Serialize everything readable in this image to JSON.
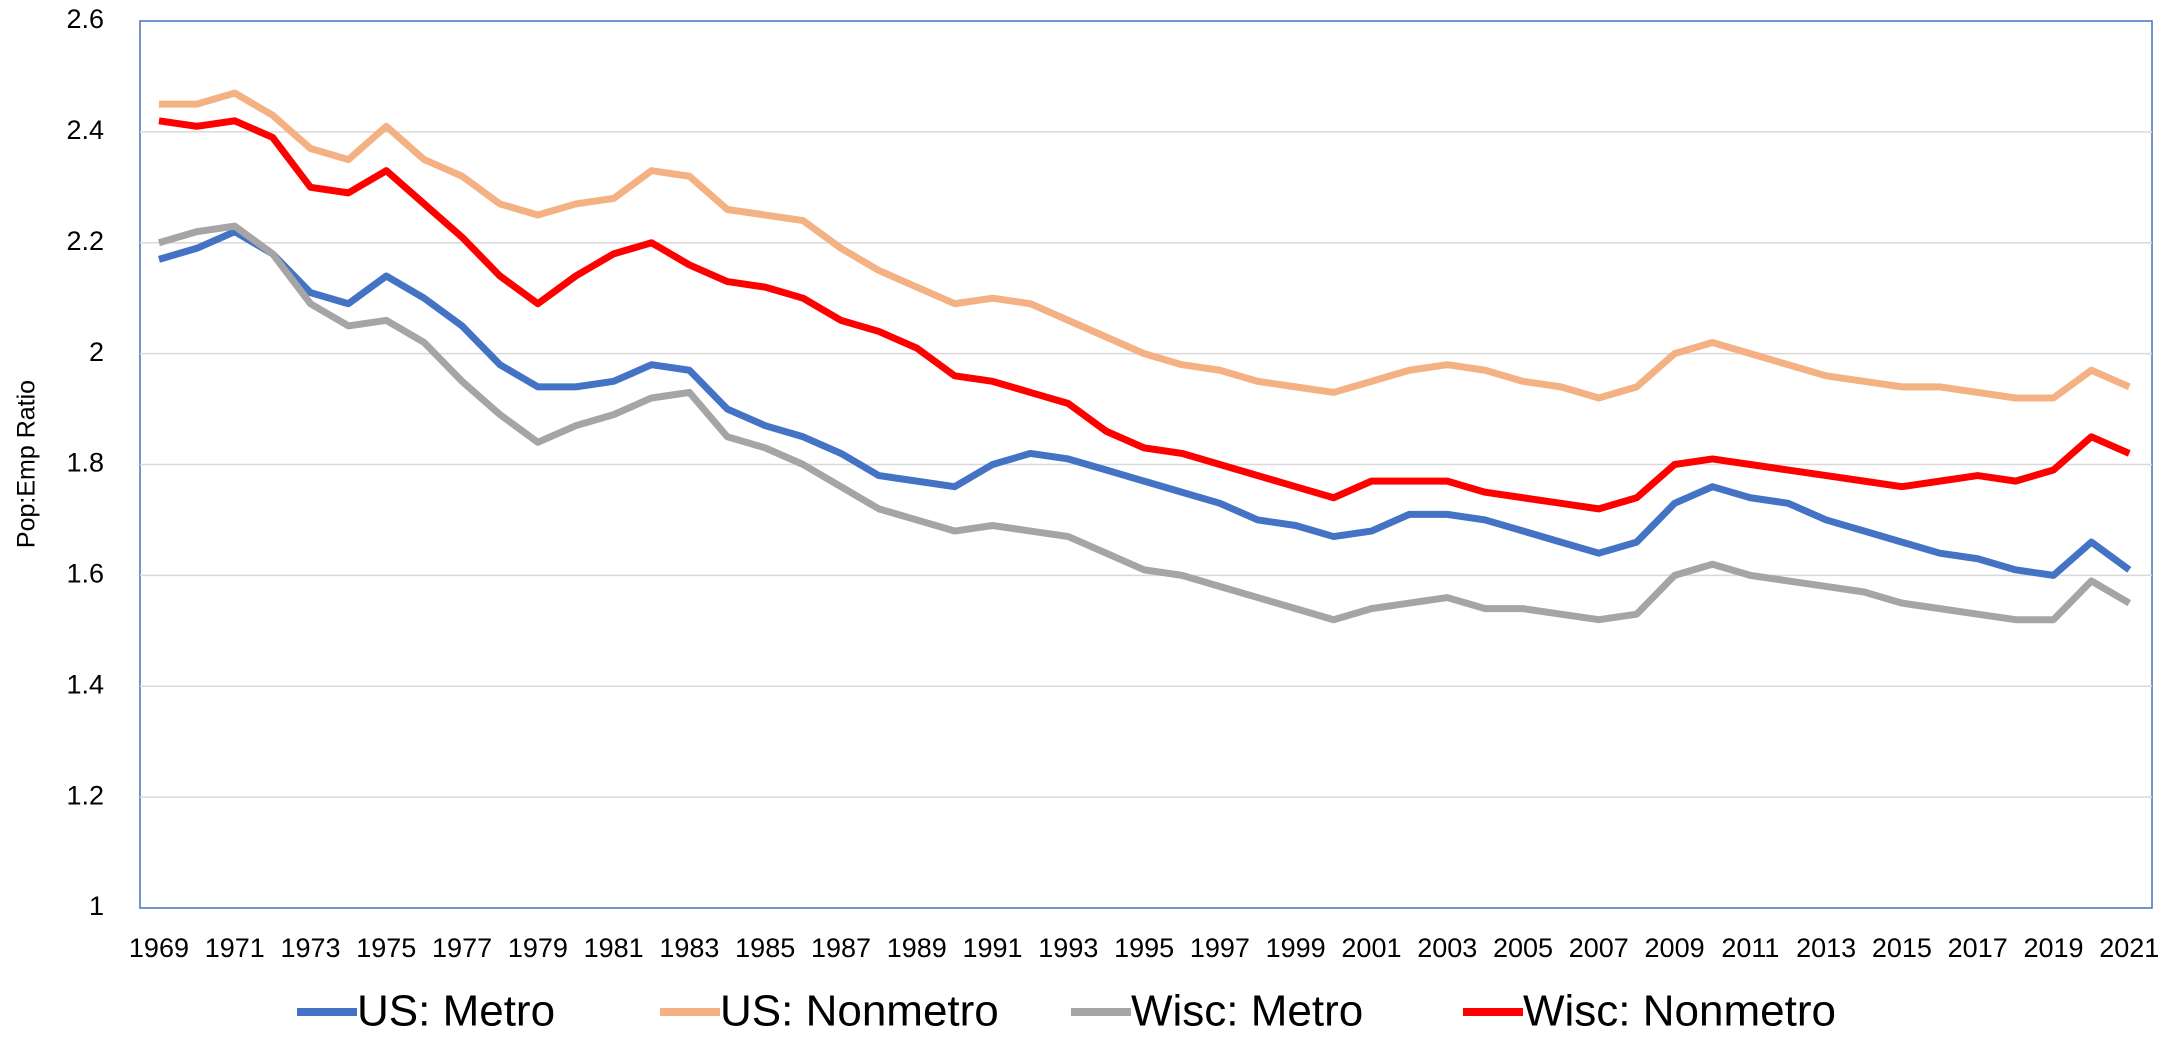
{
  "chart_data": {
    "type": "line",
    "y_label": "Pop:Emp Ratio",
    "x": [
      1969,
      1970,
      1971,
      1972,
      1973,
      1974,
      1975,
      1976,
      1977,
      1978,
      1979,
      1980,
      1981,
      1982,
      1983,
      1984,
      1985,
      1986,
      1987,
      1988,
      1989,
      1990,
      1991,
      1992,
      1993,
      1994,
      1995,
      1996,
      1997,
      1998,
      1999,
      2000,
      2001,
      2002,
      2003,
      2004,
      2005,
      2006,
      2007,
      2008,
      2009,
      2010,
      2011,
      2012,
      2013,
      2014,
      2015,
      2016,
      2017,
      2018,
      2019,
      2020,
      2021
    ],
    "xlim": [
      1968.5,
      2021.6
    ],
    "xticks": [
      1969,
      1971,
      1973,
      1975,
      1977,
      1979,
      1981,
      1983,
      1985,
      1987,
      1989,
      1991,
      1993,
      1995,
      1997,
      1999,
      2001,
      2003,
      2005,
      2007,
      2009,
      2011,
      2013,
      2015,
      2017,
      2019,
      2021
    ],
    "ylim": [
      1,
      2.6
    ],
    "yticks": [
      1,
      1.2,
      1.4,
      1.6,
      1.8,
      2,
      2.2,
      2.4,
      2.6
    ],
    "grid": true,
    "legend": "bottom",
    "series": [
      {
        "name": "US: Metro",
        "color": "#4472c4",
        "values": [
          2.17,
          2.19,
          2.22,
          2.18,
          2.11,
          2.09,
          2.14,
          2.1,
          2.05,
          1.98,
          1.94,
          1.94,
          1.95,
          1.98,
          1.97,
          1.9,
          1.87,
          1.85,
          1.82,
          1.78,
          1.77,
          1.76,
          1.8,
          1.82,
          1.81,
          1.79,
          1.77,
          1.75,
          1.73,
          1.7,
          1.69,
          1.67,
          1.68,
          1.71,
          1.71,
          1.7,
          1.68,
          1.66,
          1.64,
          1.66,
          1.73,
          1.76,
          1.74,
          1.73,
          1.7,
          1.68,
          1.66,
          1.64,
          1.63,
          1.61,
          1.6,
          1.66,
          1.61
        ]
      },
      {
        "name": "US: Nonmetro",
        "color": "#f4b183",
        "values": [
          2.45,
          2.45,
          2.47,
          2.43,
          2.37,
          2.35,
          2.41,
          2.35,
          2.32,
          2.27,
          2.25,
          2.27,
          2.28,
          2.33,
          2.32,
          2.26,
          2.25,
          2.24,
          2.19,
          2.15,
          2.12,
          2.09,
          2.1,
          2.09,
          2.06,
          2.03,
          2.0,
          1.98,
          1.97,
          1.95,
          1.94,
          1.93,
          1.95,
          1.97,
          1.98,
          1.97,
          1.95,
          1.94,
          1.92,
          1.94,
          2.0,
          2.02,
          2.0,
          1.98,
          1.96,
          1.95,
          1.94,
          1.94,
          1.93,
          1.92,
          1.92,
          1.97,
          1.94
        ]
      },
      {
        "name": "Wisc: Metro",
        "color": "#a5a5a5",
        "values": [
          2.2,
          2.22,
          2.23,
          2.18,
          2.09,
          2.05,
          2.06,
          2.02,
          1.95,
          1.89,
          1.84,
          1.87,
          1.89,
          1.92,
          1.93,
          1.85,
          1.83,
          1.8,
          1.76,
          1.72,
          1.7,
          1.68,
          1.69,
          1.68,
          1.67,
          1.64,
          1.61,
          1.6,
          1.58,
          1.56,
          1.54,
          1.52,
          1.54,
          1.55,
          1.56,
          1.54,
          1.54,
          1.53,
          1.52,
          1.53,
          1.6,
          1.62,
          1.6,
          1.59,
          1.58,
          1.57,
          1.55,
          1.54,
          1.53,
          1.52,
          1.52,
          1.59,
          1.55
        ]
      },
      {
        "name": "Wisc: Nonmetro",
        "color": "#ff0000",
        "values": [
          2.42,
          2.41,
          2.42,
          2.39,
          2.3,
          2.29,
          2.33,
          2.27,
          2.21,
          2.14,
          2.09,
          2.14,
          2.18,
          2.2,
          2.16,
          2.13,
          2.12,
          2.1,
          2.06,
          2.04,
          2.01,
          1.96,
          1.95,
          1.93,
          1.91,
          1.86,
          1.83,
          1.82,
          1.8,
          1.78,
          1.76,
          1.74,
          1.77,
          1.77,
          1.77,
          1.75,
          1.74,
          1.73,
          1.72,
          1.74,
          1.8,
          1.81,
          1.8,
          1.79,
          1.78,
          1.77,
          1.76,
          1.77,
          1.78,
          1.77,
          1.79,
          1.85,
          1.82
        ]
      }
    ]
  }
}
